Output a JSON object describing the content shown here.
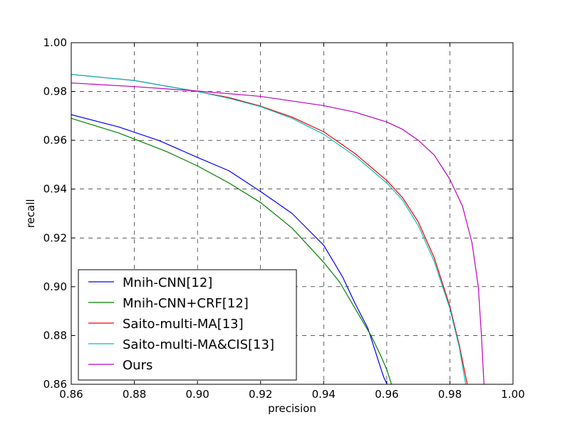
{
  "chart_data": {
    "type": "line",
    "title": "",
    "xlabel": "precision",
    "ylabel": "recall",
    "xlim": [
      0.86,
      1.0
    ],
    "ylim": [
      0.86,
      1.0
    ],
    "xticks": [
      0.86,
      0.88,
      0.9,
      0.92,
      0.94,
      0.96,
      0.98,
      1.0
    ],
    "yticks": [
      0.86,
      0.88,
      0.9,
      0.92,
      0.94,
      0.96,
      0.98,
      1.0
    ],
    "xtick_labels": [
      "0.86",
      "0.88",
      "0.90",
      "0.92",
      "0.94",
      "0.96",
      "0.98",
      "1.00"
    ],
    "ytick_labels": [
      "0.86",
      "0.88",
      "0.90",
      "0.92",
      "0.94",
      "0.96",
      "0.98",
      "1.00"
    ],
    "grid": true,
    "grid_style": "dashed",
    "legend_position": "lower-left",
    "series": [
      {
        "name": "Mnih-CNN[12]",
        "color": "#0000ff",
        "points": [
          [
            0.86,
            0.9705
          ],
          [
            0.875,
            0.9655
          ],
          [
            0.888,
            0.9598
          ],
          [
            0.9,
            0.953
          ],
          [
            0.91,
            0.9475
          ],
          [
            0.92,
            0.939
          ],
          [
            0.93,
            0.93
          ],
          [
            0.94,
            0.917
          ],
          [
            0.946,
            0.904
          ],
          [
            0.95,
            0.893
          ],
          [
            0.954,
            0.883
          ],
          [
            0.957,
            0.871
          ],
          [
            0.959,
            0.863
          ],
          [
            0.9601,
            0.86
          ]
        ]
      },
      {
        "name": "Mnih-CNN+CRF[12]",
        "color": "#008000",
        "points": [
          [
            0.86,
            0.969
          ],
          [
            0.875,
            0.963
          ],
          [
            0.89,
            0.9555
          ],
          [
            0.9,
            0.9495
          ],
          [
            0.91,
            0.9425
          ],
          [
            0.92,
            0.9345
          ],
          [
            0.93,
            0.924
          ],
          [
            0.94,
            0.91
          ],
          [
            0.945,
            0.902
          ],
          [
            0.95,
            0.891
          ],
          [
            0.955,
            0.88
          ],
          [
            0.958,
            0.872
          ],
          [
            0.96,
            0.866
          ],
          [
            0.9615,
            0.86
          ]
        ]
      },
      {
        "name": "Saito-multi-MA[13]",
        "color": "#ff0000",
        "points": [
          [
            0.86,
            0.987
          ],
          [
            0.88,
            0.9845
          ],
          [
            0.9,
            0.98
          ],
          [
            0.91,
            0.9775
          ],
          [
            0.92,
            0.974
          ],
          [
            0.93,
            0.9695
          ],
          [
            0.94,
            0.9635
          ],
          [
            0.95,
            0.9545
          ],
          [
            0.96,
            0.9435
          ],
          [
            0.965,
            0.9365
          ],
          [
            0.97,
            0.9265
          ],
          [
            0.975,
            0.912
          ],
          [
            0.98,
            0.892
          ],
          [
            0.983,
            0.876
          ],
          [
            0.9855,
            0.86
          ]
        ]
      },
      {
        "name": "Saito-multi-MA&CIS[13]",
        "color": "#00bfbf",
        "points": [
          [
            0.86,
            0.987
          ],
          [
            0.88,
            0.9845
          ],
          [
            0.9,
            0.98
          ],
          [
            0.91,
            0.9772
          ],
          [
            0.92,
            0.9738
          ],
          [
            0.93,
            0.969
          ],
          [
            0.94,
            0.9625
          ],
          [
            0.95,
            0.9535
          ],
          [
            0.96,
            0.9425
          ],
          [
            0.965,
            0.9355
          ],
          [
            0.97,
            0.925
          ],
          [
            0.975,
            0.9105
          ],
          [
            0.98,
            0.891
          ],
          [
            0.983,
            0.875
          ],
          [
            0.985,
            0.86
          ]
        ]
      },
      {
        "name": "Ours",
        "color": "#bf00bf",
        "points": [
          [
            0.86,
            0.9835
          ],
          [
            0.88,
            0.982
          ],
          [
            0.9,
            0.9802
          ],
          [
            0.92,
            0.978
          ],
          [
            0.94,
            0.9742
          ],
          [
            0.95,
            0.9715
          ],
          [
            0.96,
            0.9675
          ],
          [
            0.965,
            0.9645
          ],
          [
            0.97,
            0.96
          ],
          [
            0.975,
            0.954
          ],
          [
            0.98,
            0.944
          ],
          [
            0.984,
            0.933
          ],
          [
            0.987,
            0.918
          ],
          [
            0.989,
            0.9
          ],
          [
            0.99,
            0.88
          ],
          [
            0.9908,
            0.86
          ]
        ]
      }
    ]
  }
}
